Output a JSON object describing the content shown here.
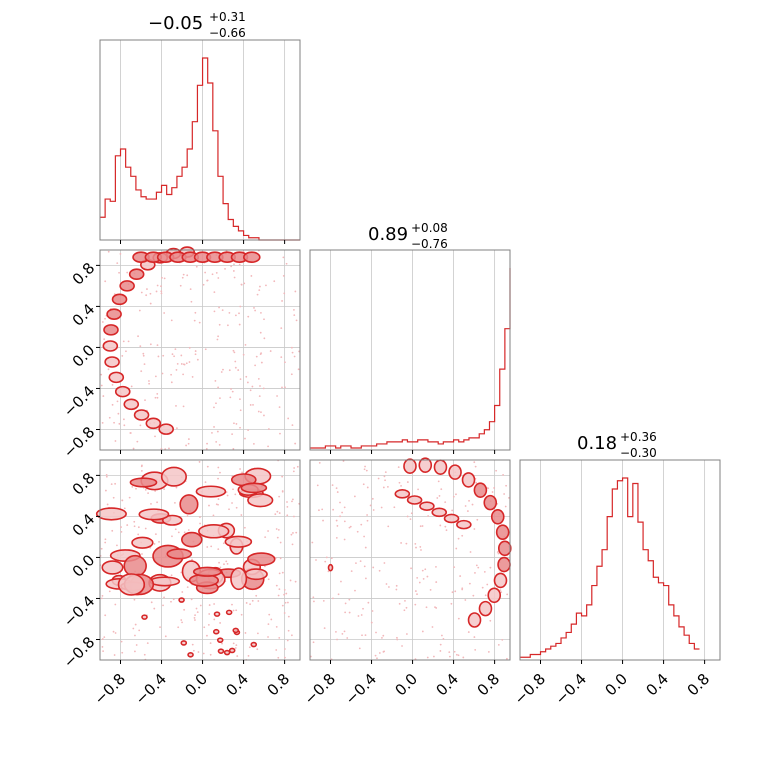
{
  "colors": {
    "accent": "#d62728",
    "fill_light": "#f4c6c7",
    "fill_mid": "#e98a8b",
    "grid": "#c8c8c8",
    "scatter": "#f2b8bb"
  },
  "chart_data": {
    "type": "corner",
    "grid": true,
    "parameters": [
      {
        "median": "−0.05",
        "plus": "+0.31",
        "minus": "−0.66"
      },
      {
        "median": "0.89",
        "plus": "+0.08",
        "minus": "−0.76"
      },
      {
        "median": "0.18",
        "plus": "+0.36",
        "minus": "−0.30"
      }
    ],
    "range": [
      -1.0,
      0.95
    ],
    "ticks": [
      -0.8,
      -0.4,
      0.0,
      0.4,
      0.8
    ],
    "tick_labels": [
      "−0.8",
      "−0.4",
      "0.0",
      "0.4",
      "0.8"
    ],
    "histograms": [
      {
        "bin_width": 0.05,
        "start": -1.0,
        "values": [
          10,
          18,
          17,
          37,
          40,
          32,
          28,
          22,
          19,
          18,
          18,
          21,
          24,
          20,
          23,
          28,
          32,
          40,
          52,
          68,
          80,
          69,
          48,
          28,
          16,
          9,
          6,
          4,
          2,
          1,
          1,
          0,
          0,
          0,
          0,
          0,
          0,
          0,
          0
        ]
      },
      {
        "bin_width": 0.05,
        "start": -1.0,
        "values": [
          1,
          1,
          1,
          2,
          2,
          1,
          2,
          2,
          1,
          1,
          2,
          2,
          2,
          3,
          3,
          4,
          4,
          4,
          5,
          4,
          4,
          5,
          5,
          4,
          4,
          3,
          4,
          4,
          5,
          4,
          5,
          6,
          6,
          8,
          10,
          14,
          22,
          40,
          60,
          90
        ]
      },
      {
        "bin_width": 0.05,
        "start": -1.0,
        "values": [
          1,
          1,
          2,
          2,
          3,
          4,
          5,
          6,
          8,
          10,
          13,
          17,
          16,
          20,
          27,
          34,
          40,
          52,
          62,
          65,
          66,
          52,
          64,
          50,
          40,
          36,
          30,
          28,
          27,
          20,
          16,
          12,
          9,
          6,
          4
        ]
      }
    ],
    "scatter_panels": [
      {
        "x_param": 0,
        "y_param": 1,
        "description": ""
      },
      {
        "x_param": 0,
        "y_param": 2,
        "description": ""
      },
      {
        "x_param": 1,
        "y_param": 2,
        "description": ""
      }
    ]
  }
}
